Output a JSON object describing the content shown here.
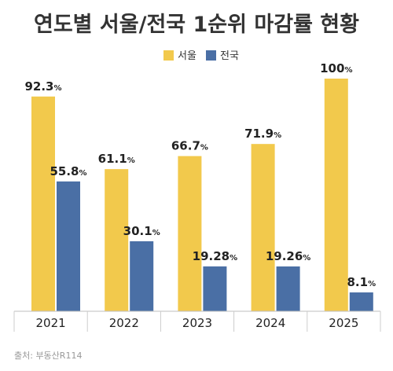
{
  "chart_data": {
    "type": "bar",
    "title": "연도별 서울/전국 1순위 마감률 현황",
    "categories": [
      "2021",
      "2022",
      "2023",
      "2024",
      "2025"
    ],
    "series": [
      {
        "name": "서울",
        "values": [
          92.3,
          61.1,
          66.7,
          71.9,
          100
        ],
        "labels": [
          "92.3",
          "61.1",
          "66.7",
          "71.9",
          "100"
        ],
        "color": "#f2c94c"
      },
      {
        "name": "전국",
        "values": [
          55.8,
          30.1,
          19.28,
          19.26,
          8.1
        ],
        "labels": [
          "55.8",
          "30.1",
          "19.28",
          "19.26",
          "8.1"
        ],
        "color": "#4a6fa5"
      }
    ],
    "value_suffix": "%",
    "ylim": [
      0,
      100
    ],
    "grid": false,
    "legend_position": "top-center",
    "source": "출처: 부동산R114"
  }
}
